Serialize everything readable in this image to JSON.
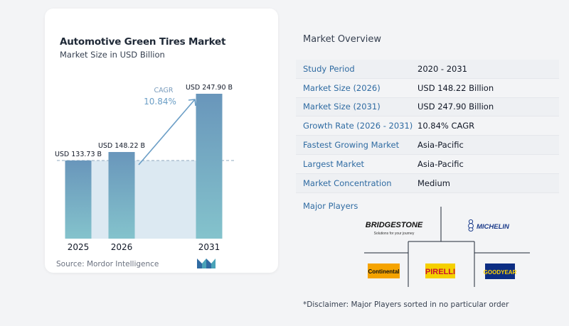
{
  "chart_data": {
    "type": "bar",
    "title": "Automotive Green Tires Market",
    "subtitle": "Market Size in USD Billion",
    "categories": [
      "2025",
      "2026",
      "2031"
    ],
    "values": [
      133.73,
      148.22,
      247.9
    ],
    "value_labels": [
      "USD 133.73 B",
      "USD 148.22 B",
      "USD 247.90 B"
    ],
    "cagr_label": "CAGR",
    "cagr_value": "10.84%",
    "colors": {
      "bar": "#6996bb",
      "bar_light": "#84c3cc",
      "band": "#dce9f2",
      "arrow": "#6b9ec6"
    }
  },
  "source": "Source: Mordor Intelligence",
  "overview": {
    "title": "Market Overview",
    "rows": [
      {
        "key": "Study Period",
        "value": "2020 - 2031"
      },
      {
        "key": "Market Size (2026)",
        "value": "USD 148.22 Billion"
      },
      {
        "key": "Market Size (2031)",
        "value": "USD 247.90 Billion"
      },
      {
        "key": "Growth Rate (2026 - 2031)",
        "value": "10.84% CAGR"
      },
      {
        "key": "Fastest Growing Market",
        "value": "Asia-Pacific"
      },
      {
        "key": "Largest Market",
        "value": "Asia-Pacific"
      },
      {
        "key": "Market Concentration",
        "value": "Medium"
      }
    ]
  },
  "players": {
    "title": "Major Players",
    "logos": [
      {
        "name": "BRIDGESTONE",
        "tagline": "Solutions for your journey"
      },
      {
        "name": "MICHELIN"
      },
      {
        "name": "Continental"
      },
      {
        "name": "PIRELLI"
      },
      {
        "name": "GOODYEAR"
      }
    ]
  },
  "disclaimer": "*Disclaimer: Major Players sorted in no particular order"
}
